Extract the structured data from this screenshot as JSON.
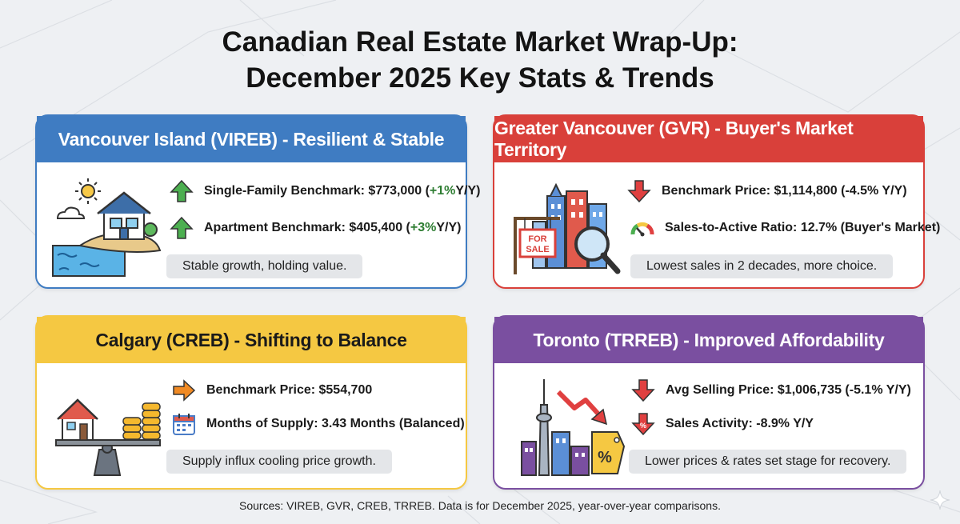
{
  "title": {
    "line1": "Canadian Real Estate Market Wrap-Up:",
    "line2": "December 2025 Key Stats & Trends"
  },
  "colors": {
    "vireb": "#3f7cc2",
    "gvr": "#d9403a",
    "creb": "#f5c842",
    "trreb": "#7a4fa0",
    "up_arrow": "#4caf50",
    "down_arrow": "#e04040",
    "right_arrow": "#f08a24"
  },
  "cards": {
    "vireb": {
      "header": "Vancouver Island (VIREB) - Resilient & Stable",
      "stat1": {
        "icon": "up-arrow-icon",
        "label": "Single-Family Benchmark: $773,000 (",
        "change": "+1%",
        "suffix": " Y/Y)"
      },
      "stat2": {
        "icon": "up-arrow-icon",
        "label": "Apartment Benchmark: $405,400 (",
        "change": "+3%",
        "suffix": " Y/Y)"
      },
      "note": "Stable growth, holding value.",
      "illustration": "island-house-icon"
    },
    "gvr": {
      "header": "Greater Vancouver (GVR) - Buyer's Market Territory",
      "stat1": {
        "icon": "down-arrow-icon",
        "text": "Benchmark Price: $1,114,800 (-4.5% Y/Y)"
      },
      "stat2": {
        "icon": "gauge-icon",
        "text": "Sales-to-Active Ratio: 12.7% (Buyer's Market)"
      },
      "note": "Lowest sales in 2 decades, more choice.",
      "illustration": "for-sale-city-icon",
      "sign_line1": "FOR",
      "sign_line2": "SALE"
    },
    "creb": {
      "header": "Calgary (CREB) - Shifting to Balance",
      "stat1": {
        "icon": "right-arrow-icon",
        "text": "Benchmark Price: $554,700"
      },
      "stat2": {
        "icon": "calendar-icon",
        "text": "Months of Supply: 3.43 Months (Balanced)"
      },
      "note": "Supply influx cooling price growth.",
      "illustration": "balance-scale-icon"
    },
    "trreb": {
      "header": "Toronto (TRREB) - Improved Affordability",
      "stat1": {
        "icon": "down-arrow-icon",
        "text": "Avg Selling Price: $1,006,735 (-5.1% Y/Y)"
      },
      "stat2": {
        "icon": "down-arrow-percent-icon",
        "text": "Sales Activity: -8.9% Y/Y"
      },
      "note": "Lower prices & rates set stage for recovery.",
      "illustration": "toronto-skyline-icon"
    }
  },
  "sources": "Sources: VIREB, GVR, CREB, TRREB. Data is for December 2025, year-over-year comparisons."
}
